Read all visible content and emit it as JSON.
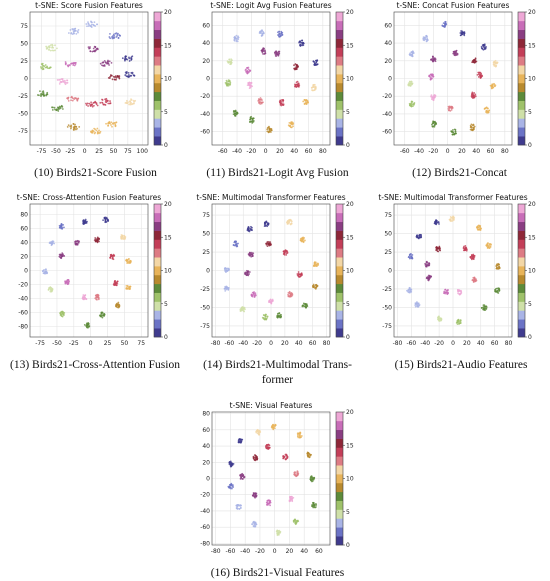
{
  "colorbar": {
    "ticks": [
      0,
      5,
      10,
      15,
      20
    ],
    "colors": [
      "#3f3b8e",
      "#6b73c6",
      "#a9b4e6",
      "#cfe0a8",
      "#9fc26a",
      "#5d8b3a",
      "#b88a2e",
      "#e8b45a",
      "#f3d7a6",
      "#dd7b84",
      "#c33e58",
      "#8e2738",
      "#8a3d82",
      "#c86db8",
      "#eea8d6"
    ]
  },
  "panels": [
    {
      "id": "p10",
      "title": "t-SNE: Score Fusion Features",
      "caption": "(10) Birds21-Score Fusion",
      "xticks": [
        -75,
        -50,
        -25,
        0,
        25,
        50,
        75,
        100
      ],
      "yticks": [
        75,
        50,
        25,
        0,
        -25,
        -50,
        -75
      ],
      "xlim": [
        -95,
        110
      ],
      "ylim": [
        -95,
        95
      ]
    },
    {
      "id": "p11",
      "title": "t-SNE: Logit Avg Fusion Features",
      "caption": "(11) Birds21-Logit Avg Fusion",
      "xticks": [
        -60,
        -40,
        -20,
        0,
        20,
        40,
        60,
        80
      ],
      "yticks": [
        60,
        40,
        20,
        0,
        -20,
        -40,
        -60
      ],
      "xlim": [
        -75,
        90
      ],
      "ylim": [
        -75,
        75
      ]
    },
    {
      "id": "p12",
      "title": "t-SNE: Concat Fusion Features",
      "caption": "(12) Birds21-Concat",
      "xticks": [
        -60,
        -40,
        -20,
        0,
        20,
        40,
        60,
        80
      ],
      "yticks": [
        60,
        40,
        20,
        0,
        -20,
        -40,
        -60
      ],
      "xlim": [
        -75,
        90
      ],
      "ylim": [
        -75,
        75
      ]
    },
    {
      "id": "p13",
      "title": "t-SNE: Cross-Attention Fusion Features",
      "caption": "(13) Birds21-Cross-Attention Fusion",
      "xticks": [
        -75,
        -50,
        -25,
        0,
        25,
        50,
        75
      ],
      "yticks": [
        80,
        60,
        40,
        20,
        0,
        -20,
        -40,
        -60,
        -80
      ],
      "xlim": [
        -90,
        85
      ],
      "ylim": [
        -95,
        95
      ]
    },
    {
      "id": "p14",
      "title": "t-SNE: Multimodal Transformer Features",
      "caption": "(14) Birds21-Multimodal Trans-\nformer",
      "xticks": [
        -80,
        -60,
        -40,
        -20,
        0,
        20,
        40,
        60,
        80
      ],
      "yticks": [
        75,
        50,
        25,
        0,
        -25,
        -50,
        -75
      ],
      "xlim": [
        -85,
        85
      ],
      "ylim": [
        -90,
        90
      ]
    },
    {
      "id": "p15",
      "title": "t-SNE: Multimodal Transformer Features",
      "caption": "(15) Birds21-Audio Features",
      "xticks": [
        -80,
        -60,
        -40,
        -20,
        0,
        20,
        40,
        60,
        80
      ],
      "yticks": [
        75,
        50,
        25,
        0,
        -25,
        -50,
        -75
      ],
      "xlim": [
        -85,
        85
      ],
      "ylim": [
        -90,
        90
      ]
    },
    {
      "id": "p16",
      "title": "t-SNE: Visual Features",
      "caption": "(16) Birds21-Visual Features",
      "xticks": [
        -80,
        -60,
        -40,
        -20,
        0,
        20,
        40,
        60
      ],
      "yticks": [
        80,
        60,
        40,
        20,
        0,
        -20,
        -40,
        -60,
        -80
      ],
      "xlim": [
        -85,
        75
      ],
      "ylim": [
        -82,
        82
      ]
    }
  ]
}
